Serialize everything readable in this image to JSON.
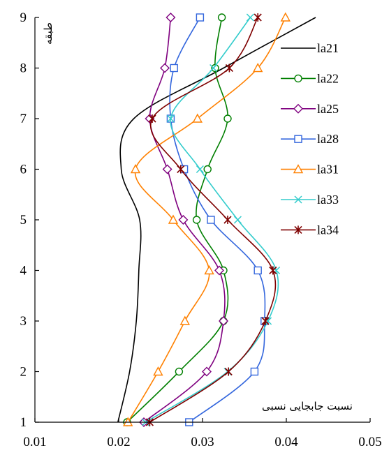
{
  "chart_data": {
    "type": "line",
    "orientation": "vertical-profile",
    "xlabel": "نسبت جابجایی نسبی",
    "ylabel": "طبقه",
    "xlim": [
      0.01,
      0.05
    ],
    "ylim": [
      1,
      9
    ],
    "xticks": [
      "0.01",
      "0.02",
      "0.03",
      "0.04",
      "0.05"
    ],
    "yticks": [
      "1",
      "2",
      "3",
      "4",
      "5",
      "6",
      "7",
      "8",
      "9"
    ],
    "grid": false,
    "legend_position": "right",
    "series": [
      {
        "name": "la21",
        "color": "#000000",
        "marker": "none",
        "x": [
          0.0199,
          0.0213,
          0.0221,
          0.0224,
          0.0225,
          0.0203,
          0.0218,
          0.0325,
          0.0435
        ],
        "y": [
          1,
          2,
          3,
          4,
          5,
          6,
          7,
          8,
          9
        ]
      },
      {
        "name": "la22",
        "color": "#007f00",
        "marker": "circle",
        "x": [
          0.021,
          0.0272,
          0.0325,
          0.0325,
          0.0293,
          0.0306,
          0.033,
          0.0315,
          0.0323
        ],
        "y": [
          1,
          2,
          3,
          4,
          5,
          6,
          7,
          8,
          9
        ]
      },
      {
        "name": "la25",
        "color": "#7f007f",
        "marker": "diamond",
        "x": [
          0.023,
          0.0305,
          0.0325,
          0.032,
          0.0277,
          0.0258,
          0.0237,
          0.0255,
          0.0262
        ],
        "y": [
          1,
          2,
          3,
          4,
          5,
          6,
          7,
          8,
          9
        ]
      },
      {
        "name": "la28",
        "color": "#3366dd",
        "marker": "square",
        "x": [
          0.0284,
          0.0362,
          0.0374,
          0.0366,
          0.031,
          0.0278,
          0.0262,
          0.0266,
          0.0297
        ],
        "y": [
          1,
          2,
          3,
          4,
          5,
          6,
          7,
          8,
          9
        ]
      },
      {
        "name": "la31",
        "color": "#ff8000",
        "marker": "triangle",
        "x": [
          0.0211,
          0.0247,
          0.0279,
          0.0308,
          0.0265,
          0.022,
          0.0294,
          0.0366,
          0.0399
        ],
        "y": [
          1,
          2,
          3,
          4,
          5,
          6,
          7,
          8,
          9
        ]
      },
      {
        "name": "la33",
        "color": "#33cccc",
        "marker": "x",
        "x": [
          0.0232,
          0.033,
          0.0378,
          0.0388,
          0.0342,
          0.0297,
          0.0262,
          0.0313,
          0.0357
        ],
        "y": [
          1,
          2,
          3,
          4,
          5,
          6,
          7,
          8,
          9
        ]
      },
      {
        "name": "la34",
        "color": "#7f0000",
        "marker": "star",
        "x": [
          0.0237,
          0.0331,
          0.0375,
          0.0384,
          0.033,
          0.0274,
          0.024,
          0.0332,
          0.0366
        ],
        "y": [
          1,
          2,
          3,
          4,
          5,
          6,
          7,
          8,
          9
        ]
      }
    ]
  }
}
